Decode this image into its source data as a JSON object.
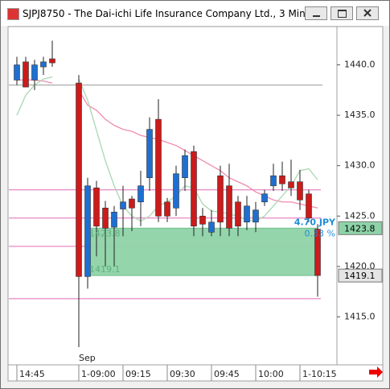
{
  "window": {
    "title": "SJPJ8750 - The Dai-ichi Life Insurance Company Ltd., 3 Min"
  },
  "chart_data": {
    "type": "candlestick",
    "categories": [
      "14:45",
      null,
      null,
      null,
      null,
      null,
      null,
      "1-09:00",
      null,
      null,
      null,
      null,
      "09:15",
      null,
      null,
      null,
      null,
      "09:30",
      null,
      null,
      null,
      null,
      "09:45",
      null,
      null,
      null,
      null,
      "10:00",
      null,
      null,
      null,
      null,
      "1-10:15",
      null,
      null
    ],
    "open": [
      1438.5,
      1440.3,
      1438.5,
      1439.8,
      1440.6,
      null,
      null,
      1438.2,
      1419,
      1427.8,
      1425.8,
      1423.9,
      1425.7,
      1426.7,
      1426.4,
      1428.8,
      1434.6,
      1426.4,
      1425.8,
      1428.8,
      1431.4,
      1425,
      1423.4,
      1429,
      1428,
      1426.4,
      1424.4,
      1424.4,
      1426.4,
      1428,
      1429,
      1428.4,
      1428.4,
      1427.2,
      1423.7
    ],
    "high": [
      1440.8,
      1440.8,
      1440.5,
      1440.8,
      1442.4,
      null,
      null,
      1439,
      1428.8,
      1428.5,
      1426.5,
      1426,
      1428,
      1427,
      1429.5,
      1434.8,
      1436.6,
      1426.8,
      1430,
      1431.6,
      1432,
      1425.8,
      1425.6,
      1430,
      1430.2,
      1427,
      1427,
      1426.4,
      1427.6,
      1430.2,
      1430.4,
      1430.6,
      1429.6,
      1427.6,
      1424.2
    ],
    "low": [
      1438,
      1437.8,
      1437.5,
      1439,
      1439.8,
      null,
      null,
      1412,
      1417.8,
      1421,
      1420,
      1420,
      1423,
      1423.5,
      1424,
      1427.5,
      1424.4,
      1424.4,
      1425,
      1427.5,
      1423,
      1423,
      1423,
      1423,
      1423,
      1423,
      1423.6,
      1423.4,
      1426,
      1427.5,
      1427.5,
      1427,
      1425.6,
      1424.4,
      1417
    ],
    "close": [
      1440,
      1437.8,
      1440,
      1440.3,
      1440.2,
      null,
      null,
      1419,
      1428,
      1424,
      1423.8,
      1425.4,
      1426.4,
      1425.8,
      1428,
      1433.6,
      1425,
      1425,
      1429.2,
      1431,
      1424,
      1424.2,
      1424.4,
      1424.4,
      1423.8,
      1424,
      1426,
      1425.6,
      1427.2,
      1429,
      1428.2,
      1427.8,
      1426.6,
      1424.8,
      1419.1
    ],
    "up_color": "#1f6fd1",
    "down_color": "#cc1b1b",
    "series": [
      {
        "color": "#f08cae",
        "values": [
          1438.5,
          1438.5,
          1438.5,
          1438.4,
          1438.2,
          null,
          null,
          1437.5,
          1436,
          1435.5,
          1434.6,
          1434,
          1433.6,
          1433.4,
          1433,
          1432.8,
          1432.6,
          1432.3,
          1432,
          1431.5,
          1431,
          1430.5,
          1430,
          1429.5,
          1428.8,
          1428.4,
          1428,
          1427.4,
          1427,
          1426.6,
          1426.4,
          1426.4,
          1426.2,
          1426,
          1425.8
        ]
      },
      {
        "color": "#a8d8b0",
        "values": [
          1435,
          1437,
          1438,
          1438.6,
          1438.8,
          null,
          null,
          1438.6,
          1436.5,
          1433.5,
          1430.5,
          1428,
          1426,
          1425,
          1424.5,
          1425,
          1426,
          1426.4,
          1427,
          1428,
          1427.8,
          1426.2,
          1425.5,
          1425.4,
          1425.2,
          1425,
          1424.6,
          1424.5,
          1425,
          1426,
          1427,
          1428,
          1429.5,
          1429.7,
          1428.6
        ]
      }
    ],
    "hlines": [
      {
        "value": 1438,
        "color": "#9a9a9a"
      },
      {
        "value": 1427.6,
        "color": "#e06ab8"
      },
      {
        "value": 1424.8,
        "color": "#e06ab8"
      },
      {
        "value": 1422,
        "color": "#e06ab8"
      },
      {
        "value": 1416.8,
        "color": "#e06ab8"
      }
    ],
    "measure": {
      "top": 1423.8,
      "bottom": 1419.1,
      "change": "4.70 JPY",
      "change_pct": "0.33 %",
      "color": "#8ed3a8"
    },
    "session_label": "Sep",
    "ylim": [
      1410.4,
      1443.8
    ],
    "yticks": [
      {
        "value": 1415,
        "label": "1415.0"
      },
      {
        "value": 1420,
        "label": "1420.0"
      },
      {
        "value": 1425,
        "label": "1425.0"
      },
      {
        "value": 1430,
        "label": "1430.0"
      },
      {
        "value": 1435,
        "label": "1435.0"
      },
      {
        "value": 1440,
        "label": "1440.0"
      }
    ]
  }
}
